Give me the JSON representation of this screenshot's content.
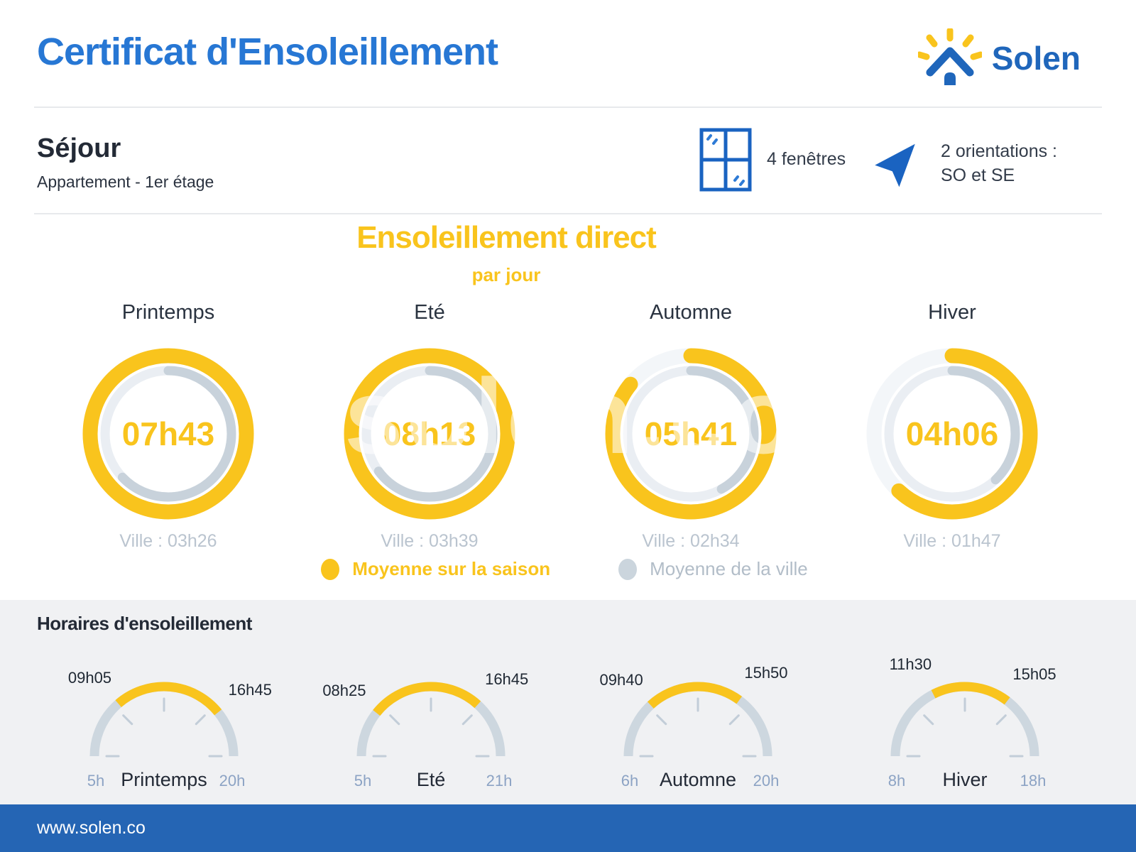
{
  "header": {
    "title": "Certificat d'Ensoleillement",
    "brand": "Solen"
  },
  "room": {
    "name": "Séjour",
    "details": "Appartement - 1er étage",
    "windows_label": "4 fenêtres",
    "orientations_line1": "2 orientations :",
    "orientations_line2": "SO et SE"
  },
  "direct_section": {
    "title": "Ensoleillement direct",
    "subtitle": "par jour",
    "legend_season": "Moyenne sur la saison",
    "legend_city": "Moyenne de la ville"
  },
  "hours_section": {
    "title": "Horaires d'ensoleillement"
  },
  "footer": {
    "url": "www.solen.co"
  },
  "watermark": "solen.co",
  "colors": {
    "brand_blue": "#1F66BB",
    "title_blue": "#2777D4",
    "footer_blue": "#2565B4",
    "yellow": "#F9C41D",
    "outer_ring_base": "#F3F6F9",
    "inner_ring_base": "#EAEEF3",
    "inner_ring_city": "#C8D2DB",
    "gauge_base": "#CDD7DF",
    "tick": "#C2CDD8"
  },
  "chart_data": [
    {
      "type": "donut-gauges",
      "title": "Ensoleillement direct par jour",
      "legend": [
        {
          "label": "Moyenne sur la saison",
          "color": "#F9C41D"
        },
        {
          "label": "Moyenne de la ville",
          "color": "#CBD5DD"
        }
      ],
      "items": [
        {
          "season": "Printemps",
          "room_avg": "07h43",
          "city_label": "Ville : 03h26",
          "room_fraction": 1.0,
          "city_fraction": 0.63
        },
        {
          "season": "Eté",
          "room_avg": "08h13",
          "city_label": "Ville : 03h39",
          "room_fraction": 1.0,
          "city_fraction": 0.65
        },
        {
          "season": "Automne",
          "room_avg": "05h41",
          "city_label": "Ville : 02h34",
          "room_fraction": 0.86,
          "city_fraction": 0.42
        },
        {
          "season": "Hiver",
          "room_avg": "04h06",
          "city_label": "Ville : 01h47",
          "room_fraction": 0.62,
          "city_fraction": 0.38
        }
      ]
    },
    {
      "type": "semicircle-gauges",
      "title": "Horaires d'ensoleillement",
      "items": [
        {
          "season": "Printemps",
          "sun_start": "09h05",
          "sun_end": "16h45",
          "scale_start": "5h",
          "scale_end": "20h",
          "scale_start_h": 5,
          "scale_end_h": 20,
          "sun_start_h": 9.083,
          "sun_end_h": 16.75
        },
        {
          "season": "Eté",
          "sun_start": "08h25",
          "sun_end": "16h45",
          "scale_start": "5h",
          "scale_end": "21h",
          "scale_start_h": 5,
          "scale_end_h": 21,
          "sun_start_h": 8.417,
          "sun_end_h": 16.75
        },
        {
          "season": "Automne",
          "sun_start": "09h40",
          "sun_end": "15h50",
          "scale_start": "6h",
          "scale_end": "20h",
          "scale_start_h": 6,
          "scale_end_h": 20,
          "sun_start_h": 9.667,
          "sun_end_h": 15.833
        },
        {
          "season": "Hiver",
          "sun_start": "11h30",
          "sun_end": "15h05",
          "scale_start": "8h",
          "scale_end": "18h",
          "scale_start_h": 8,
          "scale_end_h": 18,
          "sun_start_h": 11.5,
          "sun_end_h": 15.083
        }
      ]
    }
  ]
}
